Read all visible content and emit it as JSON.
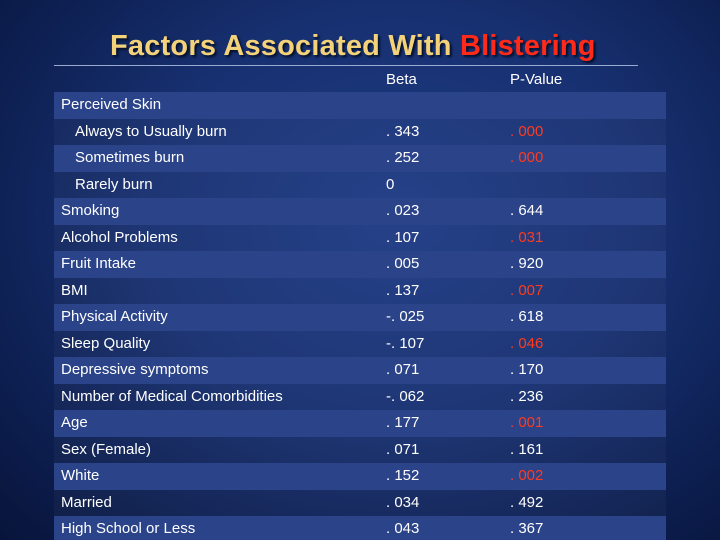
{
  "title": {
    "part1": "Factors Associated With",
    "part2": "Blistering"
  },
  "columns": {
    "beta": "Beta",
    "p_value": "P-Value"
  },
  "colors": {
    "background": "#173070",
    "title": "#f3d27a",
    "highlight": "#ff2a1a",
    "row_shade": "#2a4389"
  },
  "rows": [
    {
      "label": "Perceived Skin",
      "beta": "",
      "p": "",
      "sig": false,
      "indent": false
    },
    {
      "label": "Always to Usually burn",
      "beta": ". 343",
      "p": ". 000",
      "sig": true,
      "indent": true
    },
    {
      "label": "Sometimes burn",
      "beta": ". 252",
      "p": ". 000",
      "sig": true,
      "indent": true
    },
    {
      "label": "Rarely burn",
      "beta": "0",
      "p": "",
      "sig": false,
      "indent": true
    },
    {
      "label": "Smoking",
      "beta": ". 023",
      "p": ". 644",
      "sig": false,
      "indent": false
    },
    {
      "label": "Alcohol Problems",
      "beta": ". 107",
      "p": ". 031",
      "sig": true,
      "indent": false
    },
    {
      "label": "Fruit Intake",
      "beta": ". 005",
      "p": ". 920",
      "sig": false,
      "indent": false
    },
    {
      "label": "BMI",
      "beta": ". 137",
      "p": ". 007",
      "sig": true,
      "indent": false
    },
    {
      "label": "Physical Activity",
      "beta": "-. 025",
      "p": ". 618",
      "sig": false,
      "indent": false
    },
    {
      "label": "Sleep Quality",
      "beta": "-. 107",
      "p": ". 046",
      "sig": true,
      "indent": false
    },
    {
      "label": "Depressive symptoms",
      "beta": ". 071",
      "p": ". 170",
      "sig": false,
      "indent": false
    },
    {
      "label": "Number of Medical Comorbidities",
      "beta": "-. 062",
      "p": ". 236",
      "sig": false,
      "indent": false
    },
    {
      "label": "Age",
      "beta": ". 177",
      "p": ". 001",
      "sig": true,
      "indent": false
    },
    {
      "label": "Sex (Female)",
      "beta": ". 071",
      "p": ". 161",
      "sig": false,
      "indent": false
    },
    {
      "label": "White",
      "beta": ". 152",
      "p": ". 002",
      "sig": true,
      "indent": false
    },
    {
      "label": "Married",
      "beta": ". 034",
      "p": ". 492",
      "sig": false,
      "indent": false
    },
    {
      "label": "High School or Less",
      "beta": ". 043",
      "p": ". 367",
      "sig": false,
      "indent": false
    }
  ]
}
